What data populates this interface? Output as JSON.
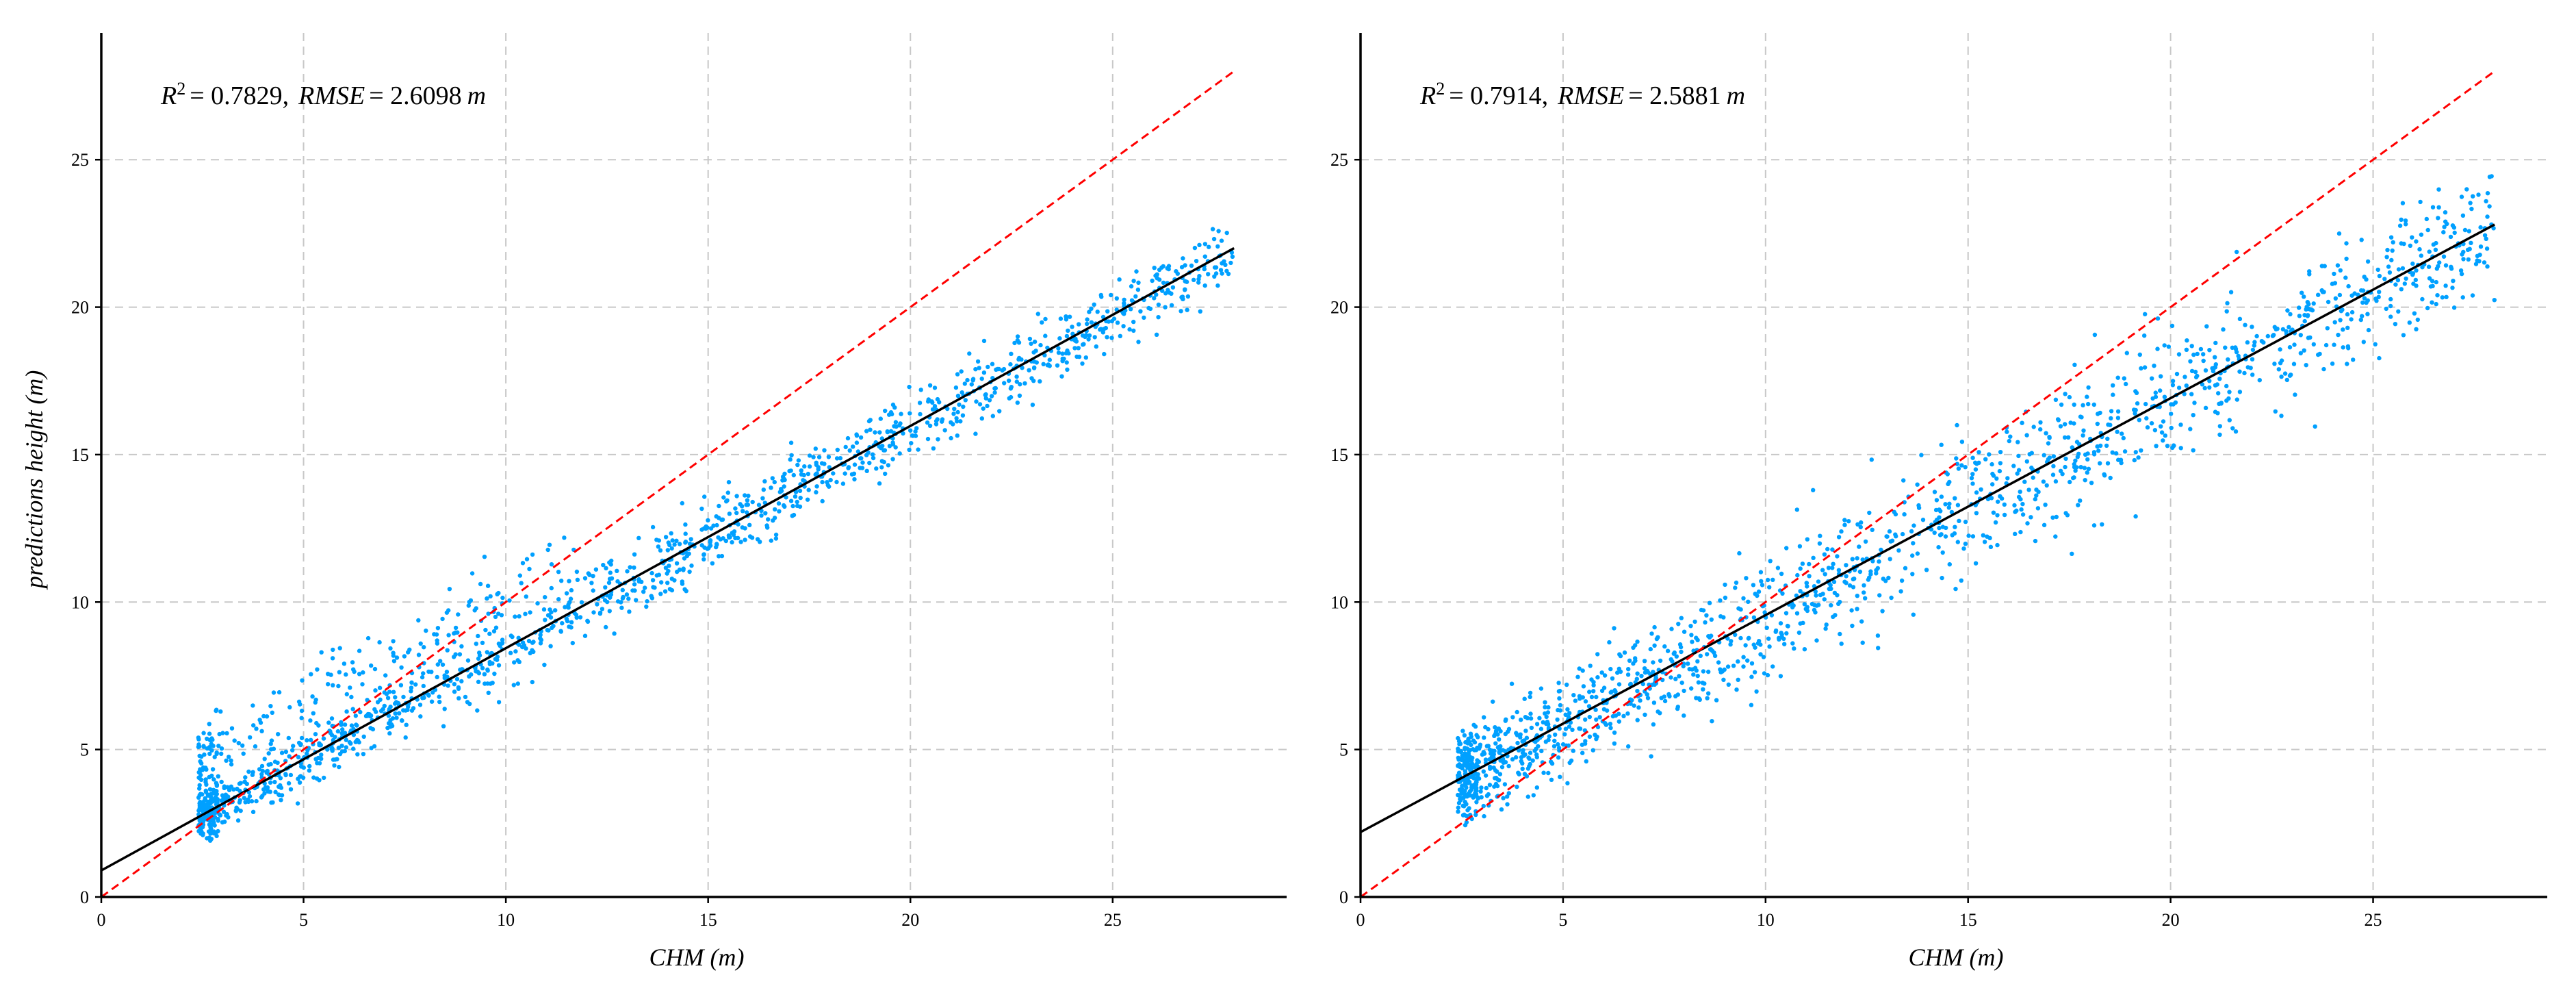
{
  "chart_data": [
    {
      "type": "scatter",
      "xlabel": "CHM (m)",
      "ylabel": "predictions height (m)",
      "xlim": [
        0,
        29.3
      ],
      "ylim": [
        0,
        29.3
      ],
      "xticks": [
        0,
        5,
        10,
        15,
        20,
        25
      ],
      "yticks": [
        0,
        5,
        10,
        15,
        20,
        25
      ],
      "grid": true,
      "annotation": {
        "r2_label": "R",
        "r2_exp": "2",
        "r2_value": "= 0.7829,",
        "rmse_label": "RMSE",
        "rmse_value": "= 2.6098",
        "unit": "m"
      },
      "point_color": "#00a0ff",
      "series": [
        {
          "kind": "scatter",
          "n_points": 1600,
          "x_range": [
            2.4,
            28.0
          ],
          "trend": {
            "slope": 0.75,
            "intercept": 0.9
          },
          "spread": 0.6
        },
        {
          "kind": "regression_line",
          "x": [
            0,
            28
          ],
          "y": [
            0.9,
            22.0
          ],
          "color": "#000000",
          "style": "solid"
        },
        {
          "kind": "identity_line",
          "x": [
            0,
            28
          ],
          "y": [
            0,
            28
          ],
          "color": "#ff0000",
          "style": "dashed"
        }
      ]
    },
    {
      "type": "scatter",
      "xlabel": "CHM (m)",
      "ylabel": "",
      "xlim": [
        0,
        29.3
      ],
      "ylim": [
        0,
        29.3
      ],
      "xticks": [
        0,
        5,
        10,
        15,
        20,
        25
      ],
      "yticks": [
        0,
        5,
        10,
        15,
        20,
        25
      ],
      "grid": true,
      "annotation": {
        "r2_label": "R",
        "r2_exp": "2",
        "r2_value": "= 0.7914,",
        "rmse_label": "RMSE",
        "rmse_value": "= 2.5881",
        "unit": "m"
      },
      "point_color": "#00a0ff",
      "series": [
        {
          "kind": "scatter",
          "n_points": 1600,
          "x_range": [
            2.4,
            28.0
          ],
          "trend": {
            "slope": 0.73,
            "intercept": 2.2
          },
          "spread": 1.1
        },
        {
          "kind": "regression_line",
          "x": [
            0,
            28
          ],
          "y": [
            2.2,
            22.8
          ],
          "color": "#000000",
          "style": "solid"
        },
        {
          "kind": "identity_line",
          "x": [
            0,
            28
          ],
          "y": [
            0,
            28
          ],
          "color": "#ff0000",
          "style": "dashed"
        }
      ]
    }
  ]
}
